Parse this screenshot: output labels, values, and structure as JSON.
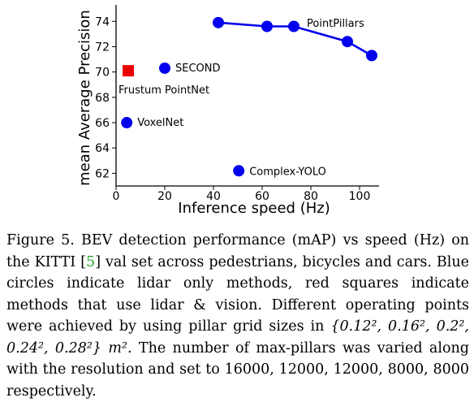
{
  "chart_data": {
    "type": "scatter",
    "title": "",
    "xlabel": "Inference speed (Hz)",
    "ylabel": "mean Average Precision",
    "xlim": [
      0,
      108
    ],
    "ylim": [
      61,
      75.3
    ],
    "xticks": [
      0,
      20,
      40,
      60,
      80,
      100
    ],
    "yticks": [
      62,
      64,
      66,
      68,
      70,
      72,
      74
    ],
    "grid": false,
    "series": [
      {
        "name": "PointPillars",
        "marker": "circle",
        "color": "#0000ee",
        "connected": true,
        "points": [
          {
            "x": 42,
            "y": 73.9
          },
          {
            "x": 62,
            "y": 73.6
          },
          {
            "x": 73,
            "y": 73.6
          },
          {
            "x": 95,
            "y": 72.4
          },
          {
            "x": 105,
            "y": 71.3
          }
        ]
      },
      {
        "name": "SECOND",
        "marker": "circle",
        "color": "#0000ee",
        "connected": false,
        "points": [
          {
            "x": 20,
            "y": 70.3
          }
        ]
      },
      {
        "name": "Frustum PointNet",
        "marker": "square",
        "color": "#ee0000",
        "connected": false,
        "points": [
          {
            "x": 5,
            "y": 70.1
          }
        ]
      },
      {
        "name": "VoxelNet",
        "marker": "circle",
        "color": "#0000ee",
        "connected": false,
        "points": [
          {
            "x": 4.4,
            "y": 66
          }
        ]
      },
      {
        "name": "Complex-YOLO",
        "marker": "circle",
        "color": "#0000ee",
        "connected": false,
        "points": [
          {
            "x": 50.4,
            "y": 62.2
          }
        ]
      }
    ]
  },
  "caption": {
    "part1": "Figure 5. BEV detection performance (mAP) vs speed (Hz) on the KITTI [",
    "ref": "5",
    "part2": "] val set across pedestrians, bicycles and cars. Blue circles indicate lidar only methods, red squares indicate methods that use lidar & vision. Different operating points were achieved by using pillar grid sizes in ",
    "sizes": "{0.12², 0.16², 0.2², 0.24², 0.28²} m².",
    "part3": " The number of max-pillars was varied along with the resolution and set to 16000, 12000, 12000, 8000, 8000 respectively."
  }
}
